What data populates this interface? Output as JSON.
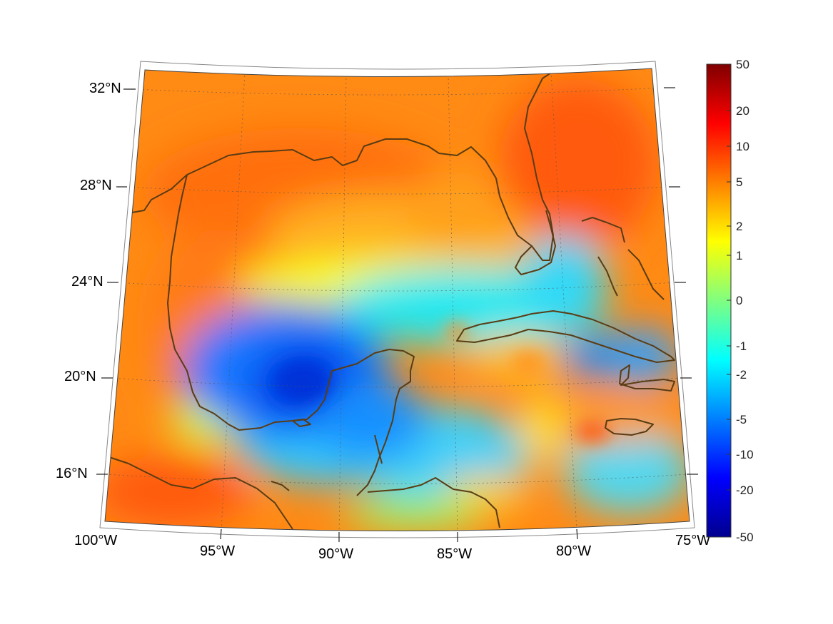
{
  "map": {
    "projection": "conic",
    "lon_range": [
      -100,
      -75
    ],
    "lat_range": [
      14,
      33
    ],
    "grid": "dotted",
    "region": "Gulf of Mexico and Caribbean",
    "coastline_color": "#5a3c14",
    "land_fill": "none",
    "colormap": "jet"
  },
  "axes": {
    "lon_ticks": [
      "100°W",
      "95°W",
      "90°W",
      "85°W",
      "80°W",
      "75°W"
    ],
    "lat_ticks": [
      "32°N",
      "28°N",
      "24°N",
      "20°N",
      "16°N"
    ]
  },
  "colorbar": {
    "tick_labels": [
      "50",
      "20",
      "10",
      "5",
      "2",
      "1",
      "0",
      "-1",
      "-2",
      "-5",
      "-10",
      "-20",
      "-50"
    ],
    "position": "right"
  }
}
